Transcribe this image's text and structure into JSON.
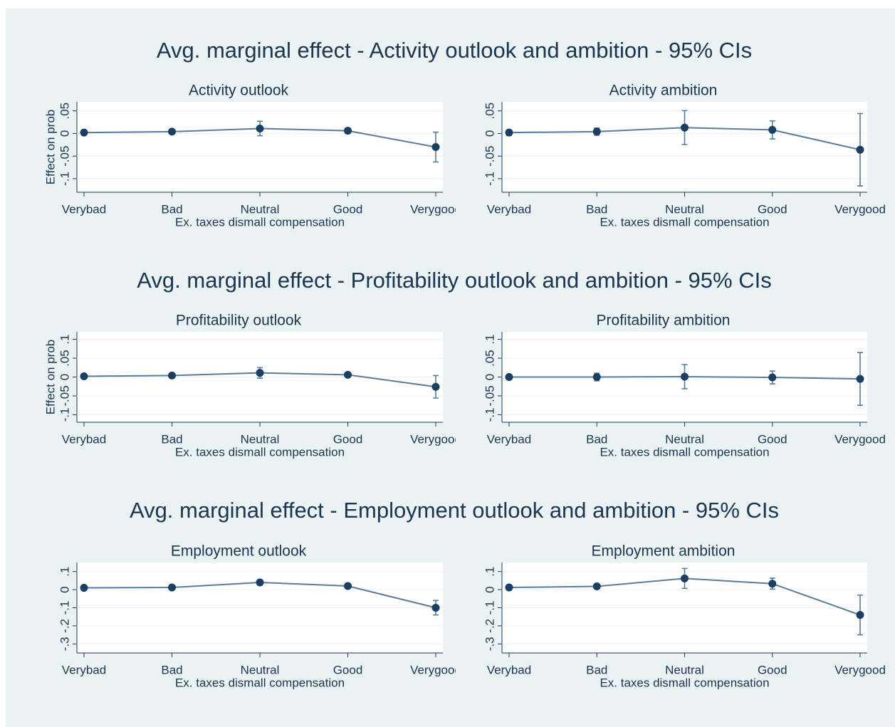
{
  "titles": [
    "Avg. marginal effect - Activity outlook and ambition - 95% CIs",
    "Avg. marginal effect - Profitability outlook and ambition - 95% CIs",
    "Avg. marginal effect - Employment outlook and ambition - 95% CIs"
  ],
  "chart_data": [
    {
      "type": "line",
      "title": "Activity outlook",
      "xlabel": "Ex. taxes dismall compensation",
      "ylabel": "Effect on prob",
      "categories": [
        "Verybad",
        "Bad",
        "Neutral",
        "Good",
        "Verygood"
      ],
      "values": [
        0.002,
        0.004,
        0.011,
        0.006,
        -0.03
      ],
      "errors": [
        0.002,
        0.003,
        0.016,
        0.006,
        0.033
      ],
      "color": "#1a3f62",
      "ylim": [
        -0.13,
        0.07
      ],
      "yticks": [
        {
          "value": -0.1,
          "label": "-.1"
        },
        {
          "value": -0.05,
          "label": "-.05"
        },
        0,
        {
          "value": 0.05,
          "label": ".05"
        }
      ],
      "grid": true
    },
    {
      "type": "line",
      "title": "Activity ambition",
      "xlabel": "Ex. taxes dismall compensation",
      "categories": [
        "Verybad",
        "Bad",
        "Neutral",
        "Good",
        "Verygood"
      ],
      "values": [
        0.002,
        0.004,
        0.013,
        0.008,
        -0.036
      ],
      "errors": [
        0.006,
        0.008,
        0.0375,
        0.02,
        0.08
      ],
      "color": "#1a3f62",
      "ylim": [
        -0.13,
        0.07
      ],
      "yticks": [
        {
          "value": -0.1,
          "label": "-.1"
        },
        {
          "value": -0.05,
          "label": "-.05"
        },
        0,
        {
          "value": 0.05,
          "label": ".05"
        }
      ],
      "grid": true
    },
    {
      "type": "line",
      "title": "Profitability outlook",
      "xlabel": "Ex. taxes dismall compensation",
      "ylabel": "Effect on prob",
      "categories": [
        "Verybad",
        "Bad",
        "Neutral",
        "Good",
        "Verygood"
      ],
      "values": [
        0.002,
        0.004,
        0.011,
        0.006,
        -0.026
      ],
      "errors": [
        0.002,
        0.002,
        0.014,
        0.005,
        0.03
      ],
      "color": "#1a3f62",
      "ylim": [
        -0.12,
        0.12
      ],
      "yticks": [
        {
          "value": -0.1,
          "label": "-.1"
        },
        {
          "value": -0.05,
          "label": "-.05"
        },
        0,
        {
          "value": 0.05,
          "label": ".05"
        },
        {
          "value": 0.1,
          "label": ".1"
        }
      ],
      "grid": true
    },
    {
      "type": "line",
      "title": "Profitability ambition",
      "xlabel": "Ex. taxes dismall compensation",
      "categories": [
        "Verybad",
        "Bad",
        "Neutral",
        "Good",
        "Verygood"
      ],
      "values": [
        0,
        0,
        0.001,
        -0.001,
        -0.005
      ],
      "errors": [
        0.004,
        0.01,
        0.032,
        0.017,
        0.07
      ],
      "color": "#1a3f62",
      "ylim": [
        -0.12,
        0.12
      ],
      "yticks": [
        {
          "value": -0.1,
          "label": "-.1"
        },
        {
          "value": -0.05,
          "label": "-.05"
        },
        0,
        {
          "value": 0.05,
          "label": ".05"
        },
        {
          "value": 0.1,
          "label": ".1"
        }
      ],
      "grid": true
    },
    {
      "type": "line",
      "title": "Employment outlook",
      "xlabel": "Ex. taxes dismall compensation",
      "categories": [
        "Verybad",
        "Bad",
        "Neutral",
        "Good",
        "Verygood"
      ],
      "values": [
        0.01,
        0.012,
        0.04,
        0.02,
        -0.1
      ],
      "errors": [
        0.004,
        0.005,
        0.015,
        0.005,
        0.04
      ],
      "color": "#1a3f62",
      "ylim": [
        -0.35,
        0.15
      ],
      "yticks": [
        {
          "value": -0.3,
          "label": "-.3"
        },
        {
          "value": -0.2,
          "label": "-.2"
        },
        {
          "value": -0.1,
          "label": "-.1"
        },
        0,
        {
          "value": 0.1,
          "label": ".1"
        }
      ],
      "grid": true
    },
    {
      "type": "line",
      "title": "Employment ambition",
      "xlabel": "Ex. taxes dismall compensation",
      "categories": [
        "Verybad",
        "Bad",
        "Neutral",
        "Good",
        "Verygood"
      ],
      "values": [
        0.012,
        0.018,
        0.062,
        0.033,
        -0.14
      ],
      "errors": [
        0.006,
        0.01,
        0.055,
        0.03,
        0.11
      ],
      "color": "#1a3f62",
      "ylim": [
        -0.35,
        0.15
      ],
      "yticks": [
        {
          "value": -0.3,
          "label": "-.3"
        },
        {
          "value": -0.2,
          "label": "-.2"
        },
        {
          "value": -0.1,
          "label": "-.1"
        },
        0,
        {
          "value": 0.1,
          "label": ".1"
        }
      ],
      "grid": true
    }
  ]
}
